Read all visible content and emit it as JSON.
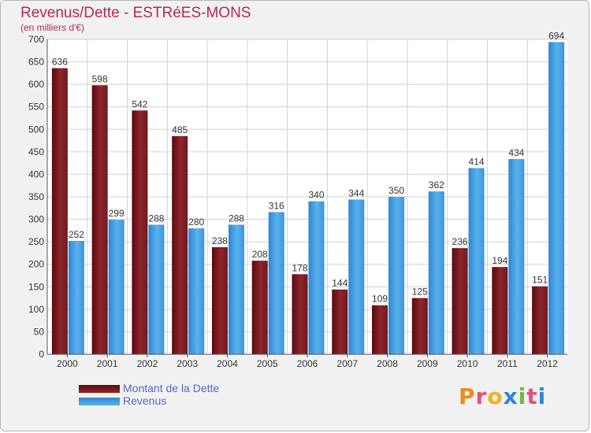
{
  "title": "Revenus/Dette - ESTRéES-MONS",
  "subtitle": "(en milliers d'€)",
  "chart_data": {
    "type": "bar",
    "categories": [
      "2000",
      "2001",
      "2002",
      "2003",
      "2004",
      "2005",
      "2006",
      "2007",
      "2008",
      "2009",
      "2010",
      "2011",
      "2012"
    ],
    "series": [
      {
        "name": "Montant de la Dette",
        "color": "#7a1a1f",
        "values": [
          636,
          598,
          542,
          485,
          238,
          208,
          178,
          144,
          109,
          125,
          236,
          194,
          151
        ]
      },
      {
        "name": "Revenus",
        "color": "#4aa3e6",
        "values": [
          252,
          299,
          288,
          280,
          288,
          316,
          340,
          344,
          350,
          362,
          414,
          434,
          694
        ]
      }
    ],
    "ylim": [
      0,
      700
    ],
    "yticks": [
      0,
      50,
      100,
      150,
      200,
      250,
      300,
      350,
      400,
      450,
      500,
      550,
      600,
      650,
      700
    ],
    "grid": true,
    "legend_position": "bottom-left"
  },
  "legend": {
    "debt_label": "Montant de la Dette",
    "revenue_label": "Revenus"
  },
  "logo": {
    "letters": [
      "P",
      "r",
      "o",
      "x",
      "i",
      "t",
      "i"
    ],
    "colors": [
      "#f08a1c",
      "#e8507a",
      "#f2b21c",
      "#2f86d6",
      "#6fb83a",
      "#e8507a",
      "#2f86d6"
    ]
  }
}
